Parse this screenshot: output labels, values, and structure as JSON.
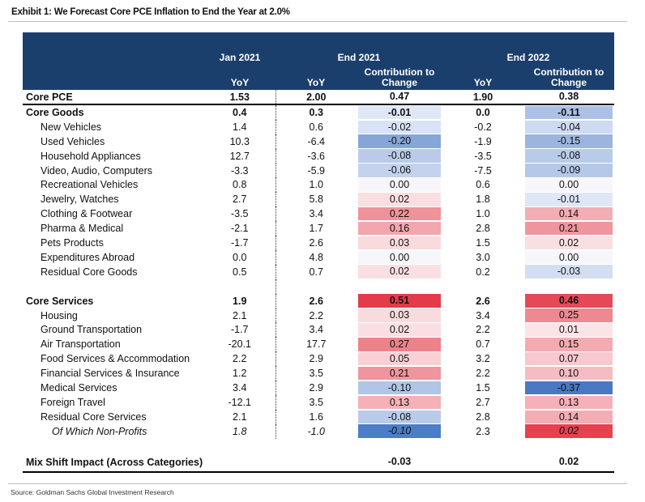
{
  "exhibit_title": "Exhibit 1: We Forecast Core PCE Inflation to End the Year at 2.0%",
  "source": "Source: Goldman Sachs Global Investment Research",
  "headers": {
    "jan2021": "Jan 2021",
    "end2021": "End 2021",
    "end2022": "End 2022",
    "yoy": "YoY",
    "contrib": "Contribution to Change"
  },
  "colors": {
    "header_bg": "#1b3f6c",
    "negative_scale": "#4a78c2",
    "positive_scale": "#e33b4a"
  },
  "core_pce": {
    "name": "Core PCE",
    "jan": "1.53",
    "yoy21": "2.00",
    "ct21": "0.47",
    "yoy22": "1.90",
    "ct22": "0.38"
  },
  "core_goods": {
    "total": {
      "name": "Core Goods",
      "jan": "0.4",
      "yoy21": "0.3",
      "ct21": "-0.01",
      "yoy22": "0.0",
      "ct22": "-0.11"
    },
    "items": [
      {
        "name": "New Vehicles",
        "jan": "1.4",
        "yoy21": "0.6",
        "ct21": "-0.02",
        "yoy22": "-0.2",
        "ct22": "-0.04"
      },
      {
        "name": "Used Vehicles",
        "jan": "10.3",
        "yoy21": "-6.4",
        "ct21": "-0.20",
        "yoy22": "-1.9",
        "ct22": "-0.15"
      },
      {
        "name": "Household Appliances",
        "jan": "12.7",
        "yoy21": "-3.6",
        "ct21": "-0.08",
        "yoy22": "-3.5",
        "ct22": "-0.08"
      },
      {
        "name": "Video, Audio, Computers",
        "jan": "-3.3",
        "yoy21": "-5.9",
        "ct21": "-0.06",
        "yoy22": "-7.5",
        "ct22": "-0.09"
      },
      {
        "name": "Recreational Vehicles",
        "jan": "0.8",
        "yoy21": "1.0",
        "ct21": "0.00",
        "yoy22": "0.6",
        "ct22": "0.00"
      },
      {
        "name": "Jewelry, Watches",
        "jan": "2.7",
        "yoy21": "5.8",
        "ct21": "0.02",
        "yoy22": "1.8",
        "ct22": "-0.01"
      },
      {
        "name": "Clothing & Footwear",
        "jan": "-3.5",
        "yoy21": "3.4",
        "ct21": "0.22",
        "yoy22": "1.0",
        "ct22": "0.14"
      },
      {
        "name": "Pharma & Medical",
        "jan": "-2.1",
        "yoy21": "1.7",
        "ct21": "0.16",
        "yoy22": "2.8",
        "ct22": "0.21"
      },
      {
        "name": "Pets Products",
        "jan": "-1.7",
        "yoy21": "2.6",
        "ct21": "0.03",
        "yoy22": "1.5",
        "ct22": "0.02"
      },
      {
        "name": "Expenditures Abroad",
        "jan": "0.0",
        "yoy21": "4.8",
        "ct21": "0.00",
        "yoy22": "3.0",
        "ct22": "0.00"
      },
      {
        "name": "Residual Core Goods",
        "jan": "0.5",
        "yoy21": "0.7",
        "ct21": "0.02",
        "yoy22": "0.2",
        "ct22": "-0.03"
      }
    ]
  },
  "core_services": {
    "total": {
      "name": "Core Services",
      "jan": "1.9",
      "yoy21": "2.6",
      "ct21": "0.51",
      "yoy22": "2.6",
      "ct22": "0.46"
    },
    "items": [
      {
        "name": "Housing",
        "jan": "2.1",
        "yoy21": "2.2",
        "ct21": "0.03",
        "yoy22": "3.4",
        "ct22": "0.25"
      },
      {
        "name": "Ground Transportation",
        "jan": "-1.7",
        "yoy21": "3.4",
        "ct21": "0.02",
        "yoy22": "2.2",
        "ct22": "0.01"
      },
      {
        "name": "Air Transportation",
        "jan": "-20.1",
        "yoy21": "17.7",
        "ct21": "0.27",
        "yoy22": "0.7",
        "ct22": "0.15"
      },
      {
        "name": "Food Services & Accommodation",
        "jan": "2.2",
        "yoy21": "2.9",
        "ct21": "0.05",
        "yoy22": "3.2",
        "ct22": "0.07"
      },
      {
        "name": "Financial Services & Insurance",
        "jan": "1.2",
        "yoy21": "3.5",
        "ct21": "0.21",
        "yoy22": "2.2",
        "ct22": "0.10"
      },
      {
        "name": "Medical Services",
        "jan": "3.4",
        "yoy21": "2.9",
        "ct21": "-0.10",
        "yoy22": "1.5",
        "ct22": "-0.37"
      },
      {
        "name": "Foreign Travel",
        "jan": "-12.1",
        "yoy21": "3.5",
        "ct21": "0.13",
        "yoy22": "2.7",
        "ct22": "0.13"
      },
      {
        "name": "Residual Core Services",
        "jan": "2.1",
        "yoy21": "1.6",
        "ct21": "-0.08",
        "yoy22": "2.8",
        "ct22": "0.14"
      }
    ],
    "nonprofit": {
      "name": "Of Which Non-Profits",
      "jan": "1.8",
      "yoy21": "-1.0",
      "ct21": "-0.10",
      "yoy22": "2.3",
      "ct22": "0.02"
    }
  },
  "mix_shift": {
    "name": "Mix Shift Impact (Across Categories)",
    "ct21": "-0.03",
    "ct22": "0.02"
  }
}
